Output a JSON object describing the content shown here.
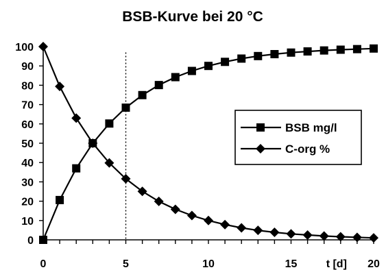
{
  "chart_data": {
    "type": "line",
    "title": "BSB-Kurve bei 20 °C",
    "xlabel": "t [d]",
    "ylabel": "",
    "xlim": [
      0,
      20
    ],
    "ylim": [
      0,
      100
    ],
    "x_ticks": [
      "0",
      "5",
      "10",
      "15",
      "20"
    ],
    "y_ticks": [
      "0",
      "10",
      "20",
      "30",
      "40",
      "50",
      "60",
      "70",
      "80",
      "90",
      "100"
    ],
    "vertical_reference_line_x": 5,
    "grid": false,
    "legend_position": "right",
    "x": [
      0,
      1,
      2,
      3,
      4,
      5,
      6,
      7,
      8,
      9,
      10,
      11,
      12,
      13,
      14,
      15,
      16,
      17,
      18,
      19,
      20
    ],
    "series": [
      {
        "name": "BSB mg/l",
        "marker": "square",
        "color": "#000000",
        "values": [
          0,
          20.6,
          37,
          50,
          60.2,
          68.4,
          74.9,
          80.1,
          84.2,
          87.4,
          90,
          92.1,
          93.8,
          95.1,
          96.1,
          96.9,
          97.5,
          98,
          98.4,
          98.7,
          99
        ]
      },
      {
        "name": "C-org %",
        "marker": "diamond",
        "color": "#000000",
        "values": [
          100,
          79.4,
          63,
          50,
          39.8,
          31.6,
          25.1,
          19.9,
          15.8,
          12.6,
          10,
          7.9,
          6.2,
          4.9,
          3.9,
          3.1,
          2.5,
          2,
          1.6,
          1.3,
          1
        ]
      }
    ]
  }
}
